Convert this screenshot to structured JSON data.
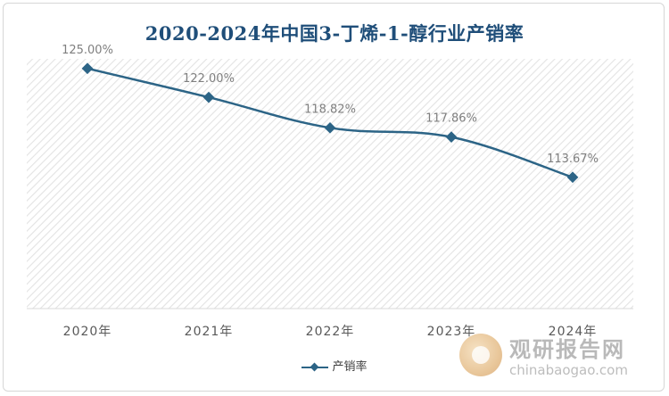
{
  "chart_data": {
    "type": "line",
    "title": "2020-2024年中国3-丁烯-1-醇行业产销率",
    "categories": [
      "2020年",
      "2021年",
      "2022年",
      "2023年",
      "2024年"
    ],
    "series": [
      {
        "name": "产销率",
        "values": [
          125.0,
          122.0,
          118.82,
          117.86,
          113.67
        ],
        "labels": [
          "125.00%",
          "122.00%",
          "118.82%",
          "117.86%",
          "113.67%"
        ]
      }
    ],
    "ylim": [
      100,
      126
    ],
    "grid": false,
    "legend_position": "bottom",
    "line_color": "#2c6486",
    "plot_background": "hatched-light-gray"
  },
  "watermark": {
    "name": "观研报告网",
    "url": "chinabaogao.com"
  }
}
